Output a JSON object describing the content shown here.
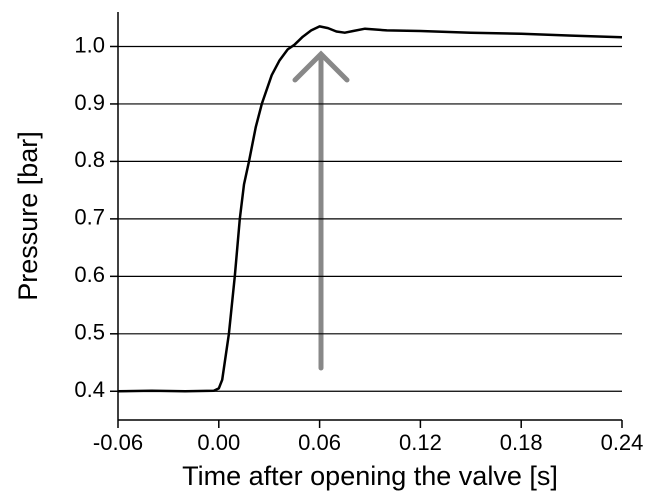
{
  "chart_data": {
    "type": "line",
    "x_label": "Time after opening the valve [s]",
    "y_label": "Pressure [bar]",
    "x": [
      -0.06,
      -0.04,
      -0.02,
      -0.003,
      0.0,
      0.002,
      0.006,
      0.0095,
      0.0125,
      0.015,
      0.018,
      0.022,
      0.0256,
      0.0315,
      0.036,
      0.041,
      0.045,
      0.05,
      0.055,
      0.06,
      0.065,
      0.07,
      0.075,
      0.08,
      0.087,
      0.1,
      0.12,
      0.15,
      0.18,
      0.21,
      0.24
    ],
    "values": [
      0.4,
      0.401,
      0.4,
      0.401,
      0.405,
      0.42,
      0.5,
      0.6,
      0.7,
      0.76,
      0.8,
      0.86,
      0.9,
      0.95,
      0.975,
      0.995,
      1.003,
      1.017,
      1.028,
      1.035,
      1.032,
      1.026,
      1.024,
      1.027,
      1.031,
      1.028,
      1.027,
      1.024,
      1.022,
      1.019,
      1.016
    ],
    "color": "#000000",
    "xlim": [
      -0.06,
      0.24
    ],
    "ylim": [
      0.35,
      1.06
    ],
    "xticks": [
      -0.06,
      {
        "value": 0,
        "label": "0.00"
      },
      0.06,
      0.12,
      0.18,
      0.24
    ],
    "yticks": [
      0.4,
      0.5,
      0.6,
      0.7,
      0.8,
      0.9,
      {
        "value": 1,
        "label": "1.0"
      }
    ],
    "grid": true
  }
}
